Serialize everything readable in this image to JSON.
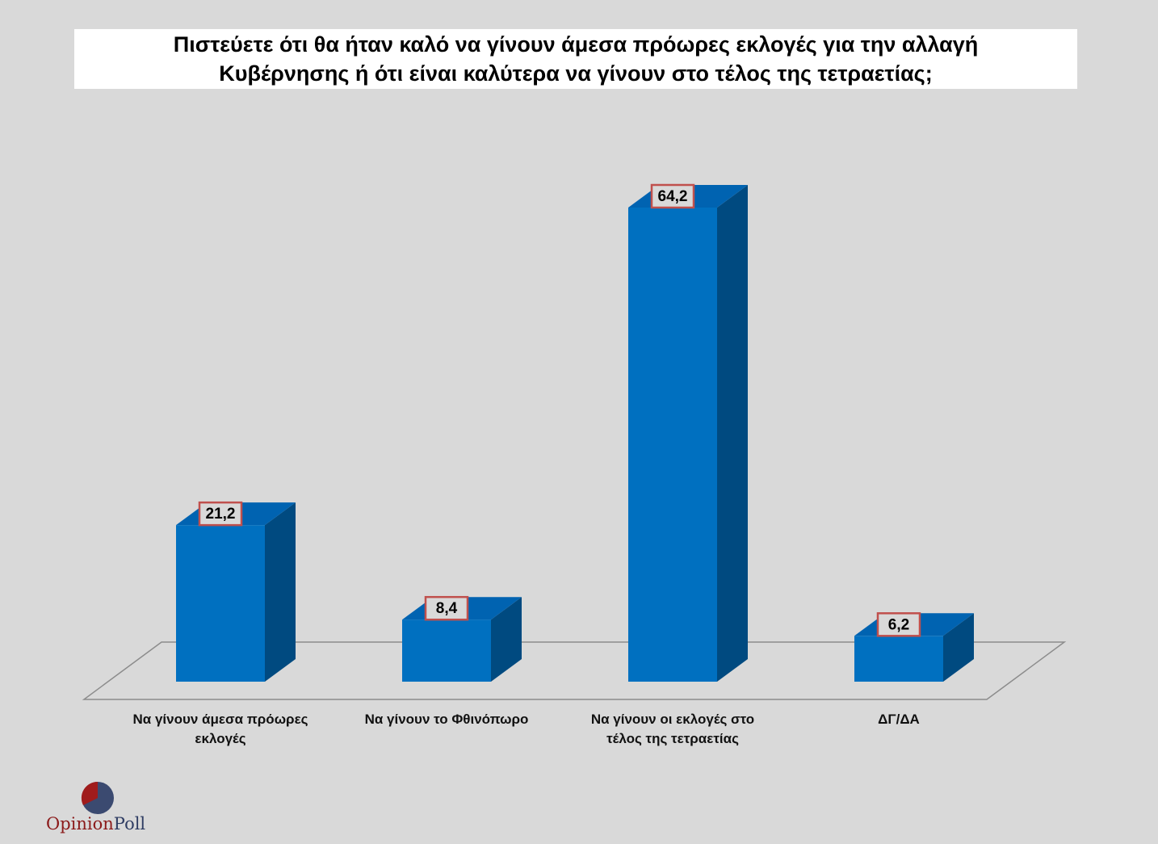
{
  "chart_data": {
    "type": "bar3d",
    "title": "Πιστεύετε ότι θα ήταν καλό να γίνουν άμεσα πρόωρες εκλογές για την αλλαγή Κυβέρνησης ή ότι είναι καλύτερα να γίνουν στο τέλος της τετραετίας;",
    "categories": [
      "Να γίνουν άμεσα πρόωρες εκλογές",
      "Να γίνουν το Φθινόπωρο",
      "Να γίνουν οι εκλογές στο τέλος της τετραετίας",
      "ΔΓ/ΔΑ"
    ],
    "values": [
      21.2,
      8.4,
      64.2,
      6.2
    ],
    "value_labels": [
      "21,2",
      "8,4",
      "64,2",
      "6,2"
    ],
    "colors": {
      "front": "#0070c0",
      "side": "#004a80",
      "top": "#0063b1"
    }
  },
  "logo": [
    "Opinion",
    "Poll"
  ]
}
